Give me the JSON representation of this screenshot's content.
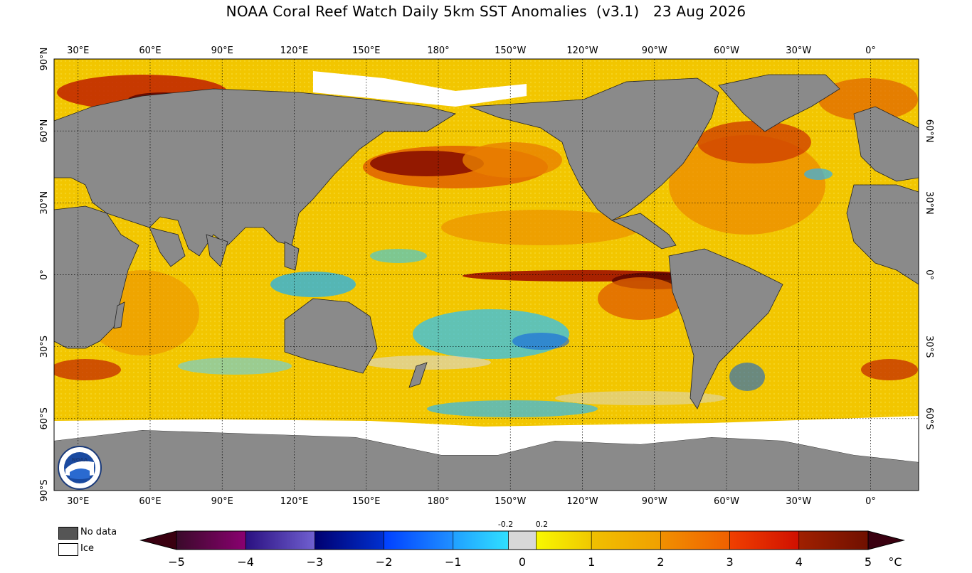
{
  "title": "NOAA Coral Reef Watch Daily 5km SST Anomalies  (v3.1)   23 Aug 2026",
  "map": {
    "lon_labels": [
      "30°E",
      "60°E",
      "90°E",
      "120°E",
      "150°E",
      "180°",
      "150°W",
      "120°W",
      "90°W",
      "60°W",
      "30°W",
      "0°"
    ],
    "lat_labels_left": [
      "90°N",
      "60°N",
      "30°N",
      "0°",
      "30°S",
      "60°S",
      "90°S"
    ],
    "lat_labels_right": [
      "60°N",
      "30°N",
      "0°",
      "30°S",
      "60°S"
    ],
    "colors": {
      "land": "#808080",
      "ice": "#ffffff",
      "warm_anomaly": "#f0a000",
      "strong_anomaly": "#a01000",
      "cool_anomaly": "#20b0f0"
    },
    "logo_text": "NOAA"
  },
  "legend": {
    "no_data": "No data",
    "ice": "Ice",
    "no_data_color": "#555555",
    "ice_color": "#ffffff"
  },
  "colorbar": {
    "tick_labels": [
      "−5",
      "−4",
      "−3",
      "−2",
      "−1",
      "0",
      "1",
      "2",
      "3",
      "4",
      "5"
    ],
    "small_labels": [
      "-0.2",
      "0.2"
    ],
    "unit": "°C",
    "range": [
      -5,
      5
    ],
    "segments": [
      {
        "from": -5,
        "to": -4,
        "colors": [
          "#3a0a2a",
          "#8a0070"
        ]
      },
      {
        "from": -4,
        "to": -3,
        "colors": [
          "#2a1080",
          "#7060d0"
        ]
      },
      {
        "from": -3,
        "to": -2,
        "colors": [
          "#000070",
          "#0030d0"
        ]
      },
      {
        "from": -2,
        "to": -1,
        "colors": [
          "#0040ff",
          "#2090ff"
        ]
      },
      {
        "from": -1,
        "to": -0.2,
        "colors": [
          "#20a0ff",
          "#30e0ff"
        ]
      },
      {
        "from": -0.2,
        "to": 0.2,
        "colors": [
          "#d8d8d8",
          "#d8d8d8"
        ]
      },
      {
        "from": 0.2,
        "to": 1,
        "colors": [
          "#f8f800",
          "#f0c800"
        ]
      },
      {
        "from": 1,
        "to": 2,
        "colors": [
          "#f0c000",
          "#f0a000"
        ]
      },
      {
        "from": 2,
        "to": 3,
        "colors": [
          "#f09000",
          "#f06000"
        ]
      },
      {
        "from": 3,
        "to": 4,
        "colors": [
          "#f04000",
          "#d01000"
        ]
      },
      {
        "from": 4,
        "to": 5,
        "colors": [
          "#a02000",
          "#701000"
        ]
      }
    ],
    "end_colors": [
      "#3a0010",
      "#3a0010"
    ]
  }
}
